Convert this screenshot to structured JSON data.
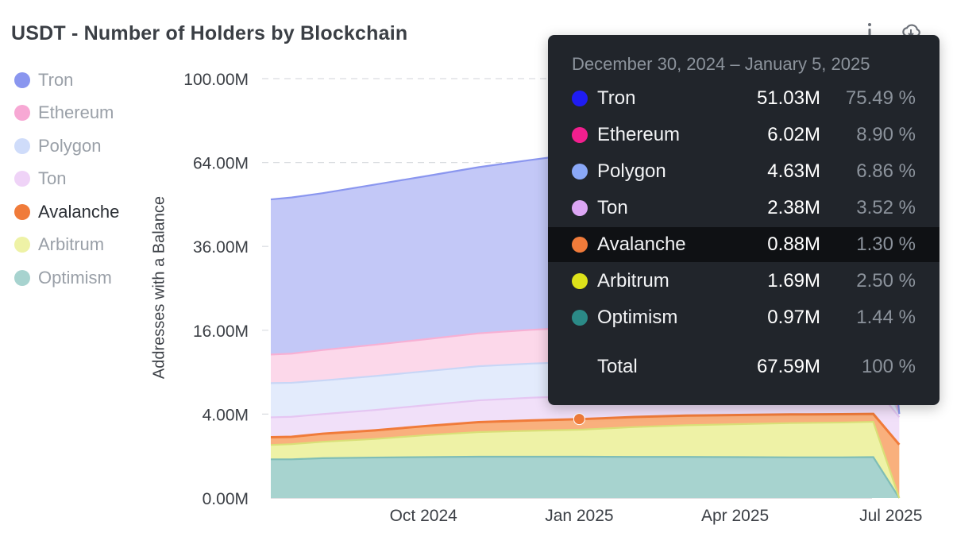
{
  "title": "USDT - Number of Holders by Blockchain",
  "legend": [
    {
      "name": "Tron",
      "color": "#8a96ef",
      "active": false
    },
    {
      "name": "Ethereum",
      "color": "#f7a8d4",
      "active": false
    },
    {
      "name": "Polygon",
      "color": "#cfdcfa",
      "active": false
    },
    {
      "name": "Ton",
      "color": "#efd3f7",
      "active": false
    },
    {
      "name": "Avalanche",
      "color": "#f07b3a",
      "active": true
    },
    {
      "name": "Arbitrum",
      "color": "#eef2a6",
      "active": false
    },
    {
      "name": "Optimism",
      "color": "#a7d3cf",
      "active": false
    }
  ],
  "toolbar": {
    "info_icon": "info-icon",
    "download_icon": "download-icon"
  },
  "chart_data": {
    "type": "area",
    "stacked": true,
    "title": "USDT - Number of Holders by Blockchain",
    "ylabel": "Addresses with a Balance",
    "xlabel": "",
    "y_scale": "sqrt",
    "yticks": [
      "0.00M",
      "4.00M",
      "16.00M",
      "36.00M",
      "64.00M",
      "100.00M"
    ],
    "ytick_values": [
      0,
      4,
      16,
      36,
      64,
      100
    ],
    "xticks": [
      "Oct 2024",
      "Jan 2025",
      "Apr 2025",
      "Jul 2025"
    ],
    "xtick_months": [
      3,
      6,
      9,
      12
    ],
    "x_months": [
      0,
      0.4,
      1,
      2,
      3,
      4,
      5,
      6,
      7,
      8,
      9,
      10,
      11,
      11.6,
      12.1
    ],
    "series": [
      {
        "name": "Optimism",
        "color": "#a7d3cf",
        "line": "#7fbdb6",
        "values": [
          0.85,
          0.85,
          0.9,
          0.93,
          0.95,
          0.97,
          0.97,
          0.97,
          0.96,
          0.96,
          0.95,
          0.94,
          0.94,
          0.95,
          0.0
        ]
      },
      {
        "name": "Arbitrum",
        "color": "#eef2a6",
        "line": "#d9df77",
        "values": [
          0.75,
          0.8,
          0.9,
          1.05,
          1.3,
          1.5,
          1.6,
          1.69,
          1.9,
          2.05,
          2.15,
          2.25,
          2.3,
          2.35,
          0.0
        ]
      },
      {
        "name": "Avalanche",
        "color": "#f9b07d",
        "line": "#f07b3a",
        "values": [
          0.5,
          0.48,
          0.55,
          0.62,
          0.7,
          0.8,
          0.85,
          0.88,
          0.87,
          0.85,
          0.82,
          0.78,
          0.75,
          0.72,
          1.62
        ]
      },
      {
        "name": "Ton",
        "color": "#f1e0f9",
        "line": "#e5c6f2",
        "values": [
          1.6,
          1.62,
          1.65,
          1.8,
          1.95,
          2.15,
          2.3,
          2.38,
          2.6,
          2.8,
          2.95,
          3.1,
          3.2,
          3.25,
          2.1
        ]
      },
      {
        "name": "Polygon",
        "color": "#e3ebfc",
        "line": "#c8d6f6",
        "values": [
          3.8,
          3.8,
          3.85,
          4.05,
          4.25,
          4.45,
          4.55,
          4.63,
          4.55,
          4.45,
          4.35,
          4.25,
          4.2,
          4.15,
          0.3
        ]
      },
      {
        "name": "Ethereum",
        "color": "#fcd8ea",
        "line": "#f7b0d4",
        "values": [
          4.2,
          4.3,
          4.6,
          4.9,
          5.2,
          5.55,
          5.8,
          6.02,
          6.05,
          6.1,
          6.15,
          6.2,
          6.22,
          6.25,
          0.0
        ]
      },
      {
        "name": "Tron",
        "color": "#c3c8f7",
        "line": "#8a96ef",
        "values": [
          39.0,
          39.5,
          40.4,
          42.5,
          44.6,
          46.8,
          48.9,
          51.03,
          51.3,
          51.5,
          51.7,
          51.9,
          52.0,
          52.1,
          0.0
        ]
      }
    ],
    "highlight_point": {
      "series": "Avalanche",
      "x_month": 6
    }
  },
  "tooltip": {
    "date_range": "December 30, 2024 – January 5, 2025",
    "rows": [
      {
        "name": "Tron",
        "color": "#1f1cf2",
        "value": "51.03M",
        "pct": "75.49 %"
      },
      {
        "name": "Ethereum",
        "color": "#f21f8e",
        "value": "6.02M",
        "pct": "8.90 %"
      },
      {
        "name": "Polygon",
        "color": "#8aa8f7",
        "value": "4.63M",
        "pct": "6.86 %"
      },
      {
        "name": "Ton",
        "color": "#dca6f4",
        "value": "2.38M",
        "pct": "3.52 %"
      },
      {
        "name": "Avalanche",
        "color": "#f07b3a",
        "value": "0.88M",
        "pct": "1.30 %",
        "highlight": true
      },
      {
        "name": "Arbitrum",
        "color": "#dde21a",
        "value": "1.69M",
        "pct": "2.50 %"
      },
      {
        "name": "Optimism",
        "color": "#2b8a87",
        "value": "0.97M",
        "pct": "1.44 %"
      }
    ],
    "total": {
      "name": "Total",
      "value": "67.59M",
      "pct": "100 %"
    }
  }
}
